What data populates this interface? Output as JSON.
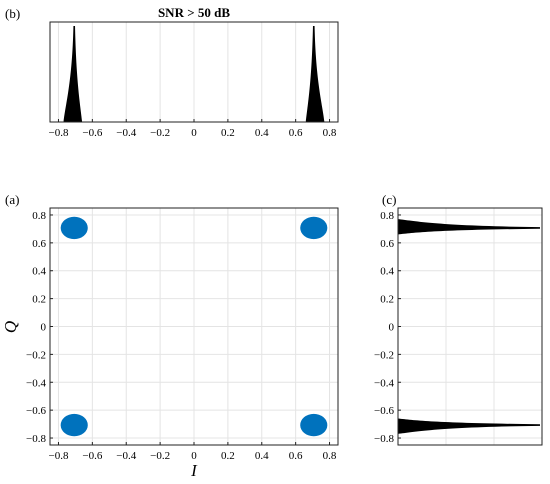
{
  "chart_data": [
    {
      "panel": "(b)",
      "type": "area",
      "title": "SNR > 50 dB",
      "xlabel": "",
      "ylabel": "",
      "xlim": [
        -0.85,
        0.85
      ],
      "x_ticks": [
        "−0.8",
        "−0.6",
        "−0.4",
        "−0.2",
        "0",
        "0.2",
        "0.4",
        "0.6",
        "0.8"
      ],
      "x_tick_values": [
        -0.8,
        -0.6,
        -0.4,
        -0.2,
        0,
        0.2,
        0.4,
        0.6,
        0.8
      ],
      "grid": true,
      "peaks": [
        {
          "center": -0.707,
          "left_extent": -0.77,
          "right_extent": -0.66
        },
        {
          "center": 0.707,
          "left_extent": 0.66,
          "right_extent": 0.77
        }
      ],
      "color": "#000000"
    },
    {
      "panel": "(a)",
      "type": "scatter",
      "xlabel": "I",
      "ylabel": "Q",
      "xlim": [
        -0.85,
        0.85
      ],
      "ylim": [
        -0.85,
        0.85
      ],
      "x_ticks": [
        "−0.8",
        "−0.6",
        "−0.4",
        "−0.2",
        "0",
        "0.2",
        "0.4",
        "0.6",
        "0.8"
      ],
      "x_tick_values": [
        -0.8,
        -0.6,
        -0.4,
        -0.2,
        0,
        0.2,
        0.4,
        0.6,
        0.8
      ],
      "y_ticks": [
        "0.8",
        "0.6",
        "0.4",
        "0.2",
        "0",
        "−0.2",
        "−0.4",
        "−0.6",
        "−0.8"
      ],
      "y_tick_values": [
        0.8,
        0.6,
        0.4,
        0.2,
        0,
        -0.2,
        -0.4,
        -0.6,
        -0.8
      ],
      "grid": true,
      "points": [
        {
          "x": -0.707,
          "y": 0.707
        },
        {
          "x": 0.707,
          "y": 0.707
        },
        {
          "x": -0.707,
          "y": -0.707
        },
        {
          "x": 0.707,
          "y": -0.707
        }
      ],
      "cluster_radius": 0.08,
      "color": "#0072BD"
    },
    {
      "panel": "(c)",
      "type": "area",
      "xlabel": "",
      "ylabel": "",
      "ylim": [
        -0.85,
        0.85
      ],
      "y_ticks": [
        "0.8",
        "0.6",
        "0.4",
        "0.2",
        "0",
        "−0.2",
        "−0.4",
        "−0.6",
        "−0.8"
      ],
      "y_tick_values": [
        0.8,
        0.6,
        0.4,
        0.2,
        0,
        -0.2,
        -0.4,
        -0.6,
        -0.8
      ],
      "grid": true,
      "peaks": [
        {
          "center": 0.707,
          "lower_extent": 0.66,
          "upper_extent": 0.77
        },
        {
          "center": -0.707,
          "lower_extent": -0.77,
          "upper_extent": -0.66
        }
      ],
      "color": "#000000"
    }
  ]
}
